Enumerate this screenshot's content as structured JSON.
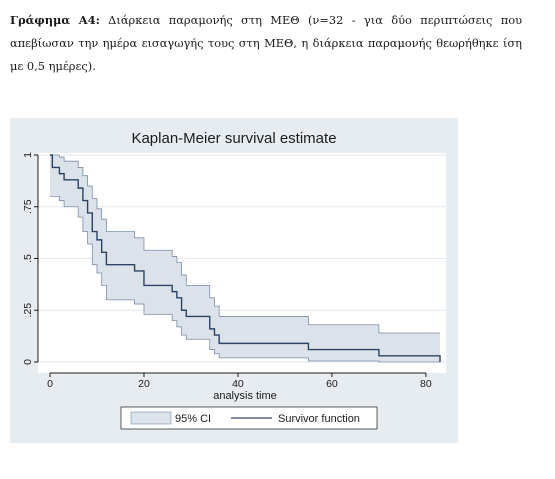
{
  "caption": {
    "label": "Γράφημα Α4:",
    "text": "Διάρκεια παραμονής στη ΜΕΘ (ν=32 - για δύο περιπτώσεις που απεβίωσαν την ημέρα εισαγωγής τους στη ΜΕΘ, η διάρκεια παραμονής θεωρήθηκε ίση με 0,5 ημέρες)."
  },
  "colors": {
    "figure_background": "#e7ecf1",
    "plot_background": "#ffffff",
    "survivor_line": "#2a4466",
    "ci_fill": "#dce2ea",
    "ci_border": "#7a8fa8",
    "grid": "#e3e8ee"
  },
  "chart_data": {
    "type": "line",
    "title": "Kaplan-Meier survival estimate",
    "xlabel": "analysis time",
    "ylabel": "",
    "xlim": [
      0,
      83
    ],
    "ylim": [
      0,
      1
    ],
    "x_ticks": [
      0,
      20,
      40,
      60,
      80
    ],
    "y_ticks": [
      0,
      0.25,
      0.5,
      0.75,
      1
    ],
    "y_tick_labels": [
      "0",
      ".25",
      ".5",
      ".75",
      "1"
    ],
    "grid": true,
    "legend_position": "bottom",
    "legend": [
      "95% CI",
      "Survivor function"
    ],
    "series": [
      {
        "name": "Survivor function",
        "steps": [
          [
            0,
            1.0
          ],
          [
            0.5,
            0.94
          ],
          [
            2,
            0.91
          ],
          [
            3,
            0.88
          ],
          [
            6,
            0.84
          ],
          [
            7,
            0.78
          ],
          [
            8,
            0.72
          ],
          [
            9,
            0.63
          ],
          [
            10,
            0.59
          ],
          [
            11,
            0.53
          ],
          [
            12,
            0.47
          ],
          [
            18,
            0.44
          ],
          [
            20,
            0.37
          ],
          [
            26,
            0.34
          ],
          [
            27,
            0.31
          ],
          [
            28,
            0.25
          ],
          [
            29,
            0.22
          ],
          [
            34,
            0.16
          ],
          [
            35,
            0.13
          ],
          [
            36,
            0.09
          ],
          [
            55,
            0.06
          ],
          [
            70,
            0.03
          ],
          [
            83,
            0.0
          ]
        ]
      },
      {
        "name": "95% CI",
        "upper": [
          [
            0,
            1.0
          ],
          [
            2,
            0.99
          ],
          [
            3,
            0.97
          ],
          [
            6,
            0.94
          ],
          [
            7,
            0.9
          ],
          [
            8,
            0.85
          ],
          [
            9,
            0.79
          ],
          [
            10,
            0.74
          ],
          [
            11,
            0.69
          ],
          [
            12,
            0.63
          ],
          [
            18,
            0.6
          ],
          [
            20,
            0.54
          ],
          [
            26,
            0.51
          ],
          [
            27,
            0.48
          ],
          [
            28,
            0.42
          ],
          [
            29,
            0.37
          ],
          [
            34,
            0.31
          ],
          [
            35,
            0.27
          ],
          [
            36,
            0.22
          ],
          [
            55,
            0.18
          ],
          [
            70,
            0.14
          ],
          [
            83,
            0.14
          ]
        ],
        "lower": [
          [
            0,
            0.8
          ],
          [
            2,
            0.78
          ],
          [
            3,
            0.75
          ],
          [
            6,
            0.7
          ],
          [
            7,
            0.63
          ],
          [
            8,
            0.57
          ],
          [
            9,
            0.47
          ],
          [
            10,
            0.43
          ],
          [
            11,
            0.37
          ],
          [
            12,
            0.3
          ],
          [
            18,
            0.28
          ],
          [
            20,
            0.23
          ],
          [
            26,
            0.2
          ],
          [
            27,
            0.17
          ],
          [
            28,
            0.13
          ],
          [
            29,
            0.11
          ],
          [
            34,
            0.06
          ],
          [
            35,
            0.04
          ],
          [
            36,
            0.02
          ],
          [
            55,
            0.005
          ],
          [
            70,
            0.0
          ],
          [
            83,
            0.0
          ]
        ]
      }
    ]
  }
}
